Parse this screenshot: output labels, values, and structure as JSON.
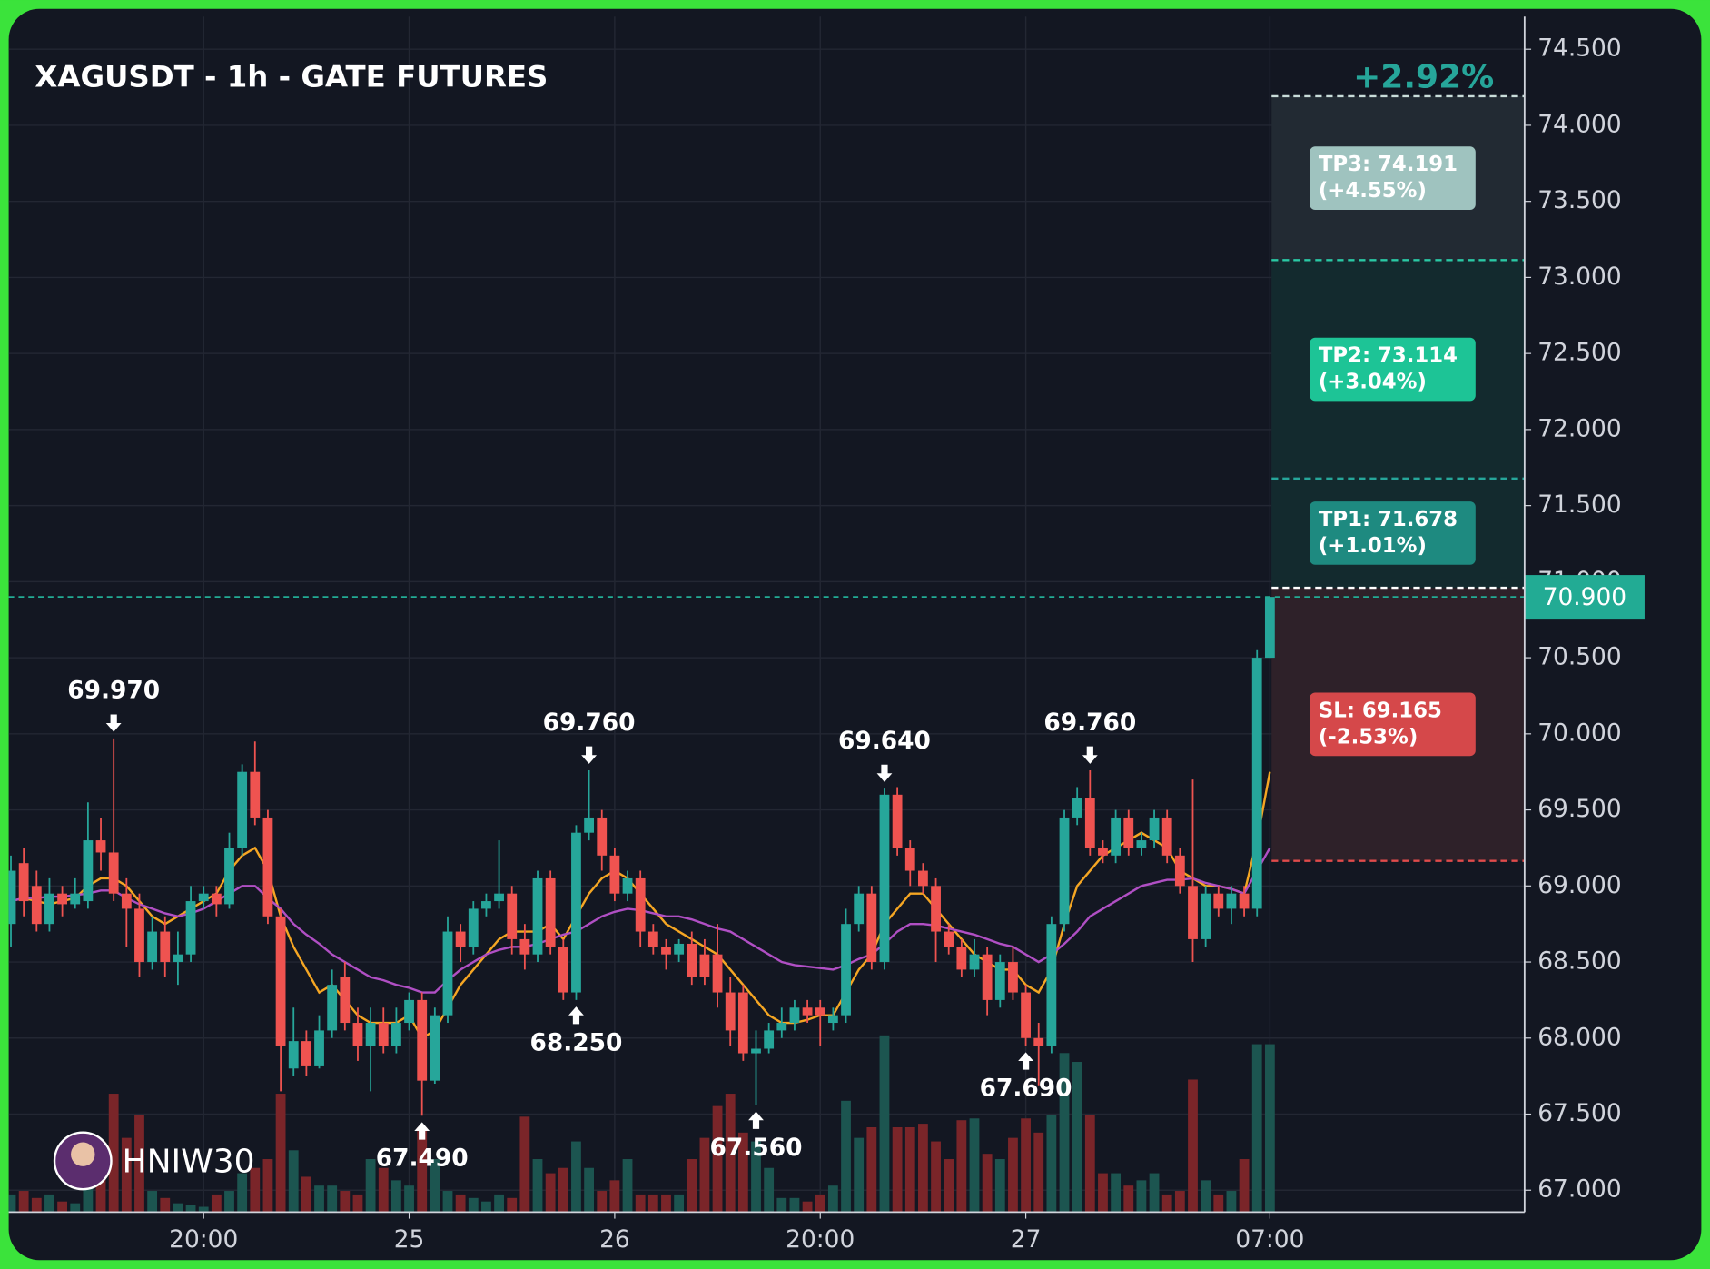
{
  "chart_data": {
    "type": "candlestick",
    "title": "XAGUSDT - 1h - GATE FUTURES",
    "header_change": "+2.92%",
    "watermark": "HNIW30",
    "categories": [
      null,
      null,
      null,
      null,
      null,
      null,
      null,
      null,
      null,
      null,
      null,
      null,
      null,
      null,
      null,
      "20:00",
      null,
      null,
      null,
      null,
      null,
      null,
      null,
      null,
      null,
      null,
      null,
      null,
      null,
      null,
      null,
      "25",
      null,
      null,
      null,
      null,
      null,
      null,
      null,
      null,
      null,
      null,
      null,
      null,
      null,
      null,
      null,
      "26",
      null,
      null,
      null,
      null,
      null,
      null,
      null,
      null,
      null,
      null,
      null,
      null,
      null,
      null,
      null,
      "20:00",
      null,
      null,
      null,
      null,
      null,
      null,
      null,
      null,
      null,
      null,
      null,
      null,
      null,
      null,
      null,
      "27",
      null,
      null,
      null,
      null,
      null,
      null,
      null,
      null,
      null,
      null,
      null,
      null,
      null,
      null,
      null,
      null,
      null,
      null,
      "07:00"
    ],
    "open": [
      68.75,
      69.15,
      69.0,
      68.75,
      68.95,
      68.88,
      68.9,
      69.3,
      69.22,
      68.95,
      68.85,
      68.5,
      68.7,
      68.5,
      68.55,
      68.9,
      68.95,
      68.88,
      69.25,
      69.75,
      69.45,
      68.8,
      67.8,
      67.98,
      67.82,
      68.05,
      68.4,
      68.1,
      67.95,
      68.1,
      67.95,
      68.1,
      68.25,
      67.72,
      68.15,
      68.7,
      68.6,
      68.85,
      68.9,
      68.95,
      68.65,
      68.55,
      69.05,
      68.6,
      68.3,
      69.35,
      69.45,
      69.2,
      68.95,
      69.05,
      68.7,
      68.6,
      68.55,
      68.62,
      68.55,
      68.55,
      68.3,
      68.3,
      67.9,
      67.93,
      68.05,
      68.1,
      68.2,
      68.2,
      68.1,
      68.15,
      68.75,
      68.95,
      68.5,
      69.6,
      69.25,
      69.1,
      69.0,
      68.7,
      68.6,
      68.45,
      68.55,
      68.25,
      68.5,
      68.3,
      68.0,
      67.95,
      68.75,
      69.45,
      69.58,
      69.25,
      69.2,
      69.45,
      69.25,
      69.3,
      69.45,
      69.2,
      69.0,
      68.65,
      68.95,
      68.85,
      68.95,
      68.85,
      70.5
    ],
    "high": [
      69.2,
      69.25,
      69.1,
      69.05,
      69.0,
      69.05,
      69.55,
      69.45,
      69.97,
      69.05,
      68.95,
      68.8,
      68.8,
      68.7,
      69.0,
      69.0,
      69.0,
      69.35,
      69.8,
      69.95,
      69.5,
      68.85,
      68.2,
      68.05,
      68.15,
      68.45,
      68.5,
      68.2,
      68.2,
      68.2,
      68.2,
      68.3,
      68.3,
      68.2,
      68.8,
      68.75,
      68.9,
      68.95,
      69.3,
      69.0,
      68.75,
      69.1,
      69.1,
      68.65,
      69.4,
      69.76,
      69.5,
      69.25,
      69.1,
      69.1,
      68.75,
      68.65,
      68.65,
      68.7,
      68.65,
      68.75,
      68.4,
      68.35,
      68.05,
      68.1,
      68.2,
      68.25,
      68.25,
      68.25,
      68.2,
      68.85,
      69.0,
      69.0,
      69.64,
      69.65,
      69.3,
      69.15,
      69.05,
      68.75,
      68.65,
      68.65,
      68.6,
      68.55,
      68.6,
      68.35,
      68.1,
      68.8,
      69.5,
      69.65,
      69.76,
      69.3,
      69.5,
      69.5,
      69.35,
      69.5,
      69.5,
      69.25,
      69.7,
      69.0,
      69.0,
      69.0,
      69.0,
      70.55,
      70.9
    ],
    "low": [
      68.6,
      68.8,
      68.7,
      68.7,
      68.8,
      68.85,
      68.85,
      69.1,
      68.9,
      68.6,
      68.4,
      68.45,
      68.4,
      68.35,
      68.5,
      68.85,
      68.8,
      68.85,
      69.2,
      69.4,
      68.75,
      67.65,
      67.75,
      67.75,
      67.8,
      68.0,
      68.05,
      67.85,
      67.65,
      67.9,
      67.9,
      68.05,
      67.49,
      67.7,
      68.1,
      68.5,
      68.55,
      68.8,
      68.85,
      68.55,
      68.45,
      68.5,
      68.55,
      68.25,
      68.25,
      69.3,
      69.1,
      68.9,
      68.9,
      68.6,
      68.55,
      68.45,
      68.5,
      68.35,
      68.35,
      68.2,
      67.95,
      67.85,
      67.56,
      67.9,
      68.0,
      68.05,
      68.1,
      67.95,
      68.05,
      68.1,
      68.7,
      68.45,
      68.45,
      69.2,
      69.0,
      68.95,
      68.5,
      68.55,
      68.4,
      68.4,
      68.15,
      68.2,
      68.25,
      67.95,
      67.69,
      67.9,
      68.7,
      69.4,
      69.2,
      69.15,
      69.15,
      69.2,
      69.2,
      69.25,
      69.15,
      68.95,
      68.5,
      68.6,
      68.8,
      68.75,
      68.8,
      68.8,
      70.5
    ],
    "close": [
      69.1,
      68.9,
      68.75,
      68.95,
      68.88,
      68.95,
      69.3,
      69.22,
      68.95,
      68.85,
      68.5,
      68.7,
      68.5,
      68.55,
      68.9,
      68.95,
      68.88,
      69.25,
      69.75,
      69.45,
      68.8,
      67.95,
      67.98,
      67.82,
      68.05,
      68.35,
      68.1,
      67.95,
      68.1,
      67.95,
      68.1,
      68.25,
      67.72,
      68.15,
      68.7,
      68.6,
      68.85,
      68.9,
      68.95,
      68.65,
      68.55,
      69.05,
      68.6,
      68.3,
      69.35,
      69.45,
      69.2,
      68.95,
      69.05,
      68.7,
      68.6,
      68.55,
      68.62,
      68.4,
      68.4,
      68.3,
      68.05,
      67.9,
      67.93,
      68.05,
      68.1,
      68.2,
      68.15,
      68.15,
      68.15,
      68.75,
      68.95,
      68.5,
      69.6,
      69.25,
      69.1,
      69.0,
      68.7,
      68.6,
      68.45,
      68.55,
      68.25,
      68.5,
      68.3,
      68.0,
      67.95,
      68.75,
      69.45,
      69.58,
      69.25,
      69.2,
      69.45,
      69.25,
      69.3,
      69.45,
      69.2,
      69.0,
      68.65,
      68.95,
      68.85,
      68.95,
      68.85,
      70.5,
      70.9
    ],
    "volume": [
      10,
      12,
      8,
      10,
      6,
      5,
      25,
      40,
      67,
      42,
      55,
      12,
      8,
      5,
      4,
      3,
      10,
      12,
      22,
      25,
      30,
      67,
      35,
      20,
      15,
      15,
      12,
      10,
      30,
      25,
      18,
      15,
      48,
      30,
      12,
      10,
      8,
      6,
      10,
      8,
      54,
      30,
      22,
      25,
      40,
      25,
      12,
      18,
      30,
      10,
      10,
      10,
      10,
      30,
      42,
      60,
      67,
      45,
      40,
      25,
      8,
      8,
      6,
      10,
      15,
      63,
      42,
      48,
      100,
      48,
      48,
      50,
      40,
      30,
      52,
      53,
      33,
      30,
      42,
      53,
      45,
      55,
      90,
      85,
      55,
      22,
      22,
      15,
      18,
      22,
      10,
      12,
      75,
      18,
      10,
      12,
      30,
      95,
      95
    ],
    "high_labels": [
      null,
      null,
      null,
      null,
      null,
      null,
      null,
      null,
      "69.970",
      null,
      null,
      null,
      null,
      null,
      null,
      null,
      null,
      null,
      null,
      null,
      null,
      null,
      null,
      null,
      null,
      null,
      null,
      null,
      null,
      null,
      null,
      null,
      null,
      null,
      null,
      null,
      null,
      null,
      null,
      null,
      null,
      null,
      null,
      null,
      null,
      "69.760",
      null,
      null,
      null,
      null,
      null,
      null,
      null,
      null,
      null,
      null,
      null,
      null,
      null,
      null,
      null,
      null,
      null,
      null,
      null,
      null,
      null,
      null,
      "69.640",
      null,
      null,
      null,
      null,
      null,
      null,
      null,
      null,
      null,
      null,
      null,
      null,
      null,
      null,
      null,
      "69.760",
      null,
      null,
      null,
      null,
      null,
      null,
      null,
      null,
      null,
      null,
      null,
      null,
      null,
      null
    ],
    "low_labels": [
      null,
      null,
      null,
      null,
      null,
      null,
      null,
      null,
      null,
      null,
      null,
      null,
      null,
      null,
      null,
      null,
      null,
      null,
      null,
      null,
      null,
      null,
      null,
      null,
      null,
      null,
      null,
      null,
      null,
      null,
      null,
      null,
      "67.490",
      null,
      null,
      null,
      null,
      null,
      null,
      null,
      null,
      null,
      null,
      null,
      "68.250",
      null,
      null,
      null,
      null,
      null,
      null,
      null,
      null,
      null,
      null,
      null,
      null,
      null,
      "67.560",
      null,
      null,
      null,
      null,
      null,
      null,
      null,
      null,
      null,
      null,
      null,
      null,
      null,
      null,
      null,
      null,
      null,
      null,
      null,
      null,
      "67.690",
      null,
      null,
      null,
      null,
      null,
      null,
      null,
      null,
      null,
      null,
      null,
      null,
      null,
      null,
      null,
      null,
      null,
      null
    ],
    "moving_averages": [
      {
        "color": "#f5a623",
        "values": [
          68.9,
          68.92,
          68.9,
          68.88,
          68.9,
          68.92,
          69.0,
          69.05,
          69.05,
          69.0,
          68.9,
          68.8,
          68.75,
          68.8,
          68.85,
          68.9,
          68.95,
          69.1,
          69.2,
          69.25,
          69.1,
          68.8,
          68.6,
          68.45,
          68.3,
          68.35,
          68.25,
          68.15,
          68.1,
          68.1,
          68.1,
          68.15,
          68.0,
          68.05,
          68.2,
          68.35,
          68.45,
          68.55,
          68.65,
          68.7,
          68.7,
          68.7,
          68.75,
          68.65,
          68.8,
          68.95,
          69.05,
          69.1,
          69.05,
          68.95,
          68.85,
          68.75,
          68.7,
          68.65,
          68.6,
          68.55,
          68.45,
          68.35,
          68.25,
          68.15,
          68.1,
          68.1,
          68.12,
          68.15,
          68.15,
          68.3,
          68.45,
          68.55,
          68.75,
          68.85,
          68.95,
          68.95,
          68.85,
          68.75,
          68.65,
          68.55,
          68.5,
          68.45,
          68.45,
          68.35,
          68.3,
          68.45,
          68.75,
          69.0,
          69.1,
          69.2,
          69.25,
          69.3,
          69.35,
          69.3,
          69.25,
          69.1,
          69.05,
          69.0,
          69.0,
          68.98,
          68.95,
          69.3,
          69.75
        ]
      },
      {
        "color": "#b04fc4",
        "values": [
          68.9,
          68.92,
          68.92,
          68.93,
          68.93,
          68.94,
          68.95,
          68.97,
          68.97,
          68.92,
          68.88,
          68.85,
          68.82,
          68.8,
          68.82,
          68.85,
          68.9,
          68.95,
          69.0,
          69.0,
          68.92,
          68.85,
          68.75,
          68.68,
          68.62,
          68.55,
          68.5,
          68.45,
          68.4,
          68.38,
          68.35,
          68.33,
          68.3,
          68.3,
          68.38,
          68.45,
          68.5,
          68.55,
          68.58,
          68.6,
          68.6,
          68.62,
          68.65,
          68.68,
          68.7,
          68.75,
          68.8,
          68.83,
          68.85,
          68.84,
          68.82,
          68.8,
          68.8,
          68.78,
          68.75,
          68.72,
          68.7,
          68.65,
          68.6,
          68.55,
          68.5,
          68.48,
          68.47,
          68.46,
          68.45,
          68.48,
          68.52,
          68.55,
          68.62,
          68.7,
          68.75,
          68.75,
          68.74,
          68.72,
          68.7,
          68.68,
          68.65,
          68.62,
          68.6,
          68.55,
          68.5,
          68.55,
          68.62,
          68.7,
          68.8,
          68.85,
          68.9,
          68.95,
          69.0,
          69.02,
          69.04,
          69.04,
          69.05,
          69.02,
          69.0,
          68.98,
          68.95,
          69.1,
          69.25
        ]
      }
    ],
    "up_color": "#26a69a",
    "down_color": "#ef5350",
    "volume_up_color": "#1c5550",
    "volume_down_color": "#7a2529",
    "ylim": [
      66.856,
      74.715
    ],
    "yticks": [
      {
        "value": 67,
        "label": "67.000"
      },
      {
        "value": 67.5,
        "label": "67.500"
      },
      {
        "value": 68,
        "label": "68.000"
      },
      {
        "value": 68.5,
        "label": "68.500"
      },
      {
        "value": 69,
        "label": "69.000"
      },
      {
        "value": 69.5,
        "label": "69.500"
      },
      {
        "value": 70,
        "label": "70.000"
      },
      {
        "value": 70.5,
        "label": "70.500"
      },
      {
        "value": 71,
        "label": "71.000"
      },
      {
        "value": 71.5,
        "label": "71.500"
      },
      {
        "value": 72,
        "label": "72.000"
      },
      {
        "value": 72.5,
        "label": "72.500"
      },
      {
        "value": 73,
        "label": "73.000"
      },
      {
        "value": 73.5,
        "label": "73.500"
      },
      {
        "value": 74,
        "label": "74.000"
      },
      {
        "value": 74.5,
        "label": "74.500"
      }
    ],
    "grid": true,
    "entry": 70.96,
    "price": {
      "value": 70.9,
      "label": "70.900",
      "color": "#22ab94"
    },
    "levels": [
      {
        "label": "TP3: 74.191",
        "change": "(+4.55%)",
        "value": 74.191,
        "line_color": "#c9dcd9",
        "box_color": "#9fc3bf",
        "zone_color": "#222a33"
      },
      {
        "label": "TP2: 73.114",
        "change": "(+3.04%)",
        "value": 73.114,
        "line_color": "#2ac8a4",
        "box_color": "#1dc496",
        "zone_color": "#132a2e"
      },
      {
        "label": "TP1: 71.678",
        "change": "(+1.01%)",
        "value": 71.678,
        "line_color": "#26a69a",
        "box_color": "#1e8a80",
        "zone_color": "#132a2e"
      },
      {
        "label": "SL: 69.165",
        "change": "(-2.53%)",
        "value": 69.165,
        "line_color": "#e04b4b",
        "box_color": "#d5484a",
        "zone_color": "#2e2129"
      }
    ]
  }
}
